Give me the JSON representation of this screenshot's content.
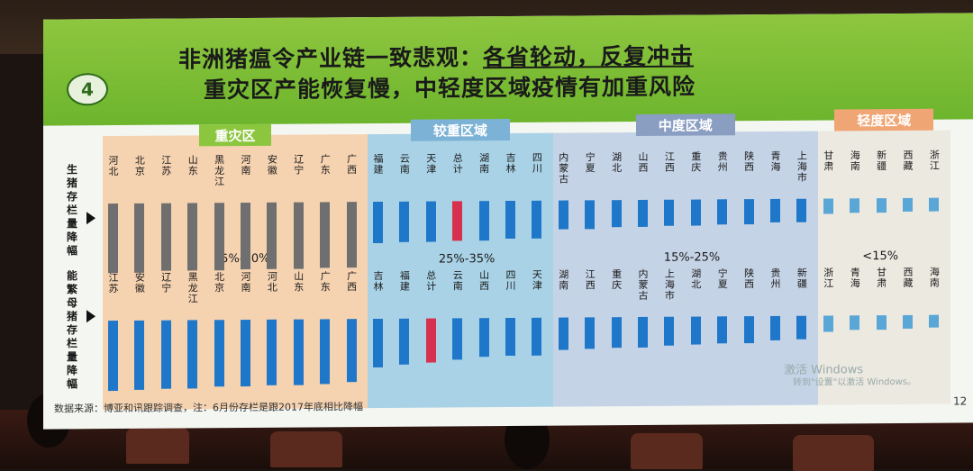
{
  "slide": {
    "number": "4",
    "title_lead": "非洲猪瘟令产业链一致悲观：",
    "title_emph": "各省轮动，反复冲击",
    "subtitle": "重灾区产能恢复慢，中轻度区域疫情有加重风险",
    "source": "数据来源：博亚和讯跟踪调查，注：6月份存栏是跟2017年底相比降幅",
    "page": "12",
    "watermark": "激活 Windows",
    "watermark_sub": "转到\"设置\"以激活 Windows。"
  },
  "regions": [
    {
      "name": "重灾区",
      "range": "35%-60%",
      "color": "#f5d2b0",
      "tag_color": "#8cc63f"
    },
    {
      "name": "较重区域",
      "range": "25%-35%",
      "color": "#a9d2e6",
      "tag_color": "#7cb2d6"
    },
    {
      "name": "中度区域",
      "range": "15%-25%",
      "color": "#c5d3e6",
      "tag_color": "#8a9ec2"
    },
    {
      "name": "轻度区域",
      "range": "<15%",
      "color": "#ece9e1",
      "tag_color": "#f0a575"
    }
  ],
  "chart_data": [
    {
      "type": "bar",
      "ylabel": "生猪存栏量降幅",
      "categories": [
        "河北",
        "北京",
        "江苏",
        "山东",
        "黑龙江",
        "河南",
        "安徽",
        "辽宁",
        "广东",
        "广西",
        "福建",
        "云南",
        "天津",
        "总计",
        "湖南",
        "吉林",
        "四川",
        "内蒙古",
        "宁夏",
        "湖北",
        "山西",
        "江西",
        "重庆",
        "贵州",
        "陕西",
        "青海",
        "上海市",
        "甘肃",
        "海南",
        "新疆",
        "西藏",
        "浙江"
      ],
      "region_index": [
        0,
        0,
        0,
        0,
        0,
        0,
        0,
        0,
        0,
        0,
        1,
        1,
        1,
        1,
        1,
        1,
        1,
        2,
        2,
        2,
        2,
        2,
        2,
        2,
        2,
        2,
        2,
        3,
        3,
        3,
        3,
        3
      ],
      "highlight": "总计",
      "values": [
        53,
        53,
        52,
        52,
        52,
        51,
        51,
        51,
        50,
        50,
        32,
        31,
        31,
        30,
        30,
        29,
        29,
        22,
        22,
        21,
        21,
        20,
        20,
        19,
        19,
        18,
        18,
        12,
        11,
        11,
        10,
        10
      ]
    },
    {
      "type": "bar",
      "ylabel": "能繁母猪存栏量降幅",
      "categories": [
        "江苏",
        "安徽",
        "辽宁",
        "黑龙江",
        "北京",
        "河南",
        "河北",
        "山东",
        "广东",
        "广西",
        "吉林",
        "福建",
        "总计",
        "云南",
        "山西",
        "四川",
        "天津",
        "湖南",
        "江西",
        "重庆",
        "内蒙古",
        "上海市",
        "湖北",
        "宁夏",
        "陕西",
        "贵州",
        "新疆",
        "浙江",
        "青海",
        "甘肃",
        "西藏",
        "海南"
      ],
      "region_index": [
        0,
        0,
        0,
        0,
        0,
        0,
        0,
        0,
        0,
        0,
        1,
        1,
        1,
        1,
        1,
        1,
        1,
        2,
        2,
        2,
        2,
        2,
        2,
        2,
        2,
        2,
        2,
        3,
        3,
        3,
        3,
        3
      ],
      "highlight": "总计",
      "values": [
        58,
        57,
        56,
        56,
        55,
        55,
        54,
        54,
        53,
        52,
        40,
        38,
        36,
        34,
        32,
        31,
        31,
        27,
        26,
        25,
        25,
        24,
        23,
        22,
        22,
        20,
        19,
        13,
        12,
        12,
        11,
        10
      ]
    }
  ]
}
